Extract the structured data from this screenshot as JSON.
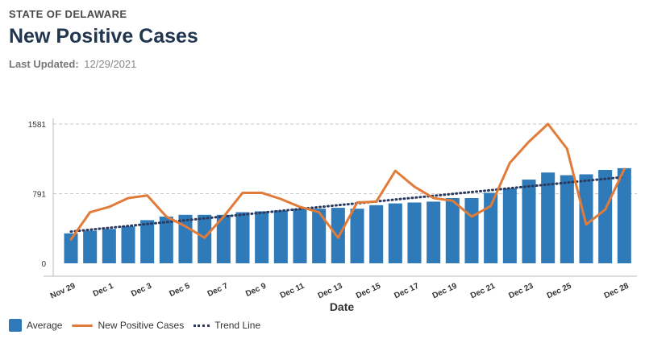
{
  "header": {
    "state": "STATE OF DELAWARE",
    "title": "New Positive Cases",
    "updated_label": "Last Updated:",
    "updated_value": "12/29/2021"
  },
  "legend": {
    "average": "Average",
    "new_cases": "New Positive Cases",
    "trend": "Trend Line"
  },
  "colors": {
    "bar": "#2f7ab9",
    "line": "#e07b39",
    "trend": "#2b3a5f",
    "grid": "#c8c8c8"
  },
  "chart_data": {
    "type": "bar",
    "xlabel": "Date",
    "ylabel": "",
    "ylim": [
      0,
      1581
    ],
    "yticks": [
      0,
      791,
      1581
    ],
    "grid": true,
    "legend_position": "bottom-left",
    "categories": [
      "Nov 29",
      "Nov 30",
      "Dec 1",
      "Dec 2",
      "Dec 3",
      "Dec 4",
      "Dec 5",
      "Dec 6",
      "Dec 7",
      "Dec 8",
      "Dec 9",
      "Dec 10",
      "Dec 11",
      "Dec 12",
      "Dec 13",
      "Dec 14",
      "Dec 15",
      "Dec 16",
      "Dec 17",
      "Dec 18",
      "Dec 19",
      "Dec 20",
      "Dec 21",
      "Dec 22",
      "Dec 23",
      "Dec 24",
      "Dec 25",
      "Dec 26",
      "Dec 27",
      "Dec 28"
    ],
    "tick_labels": [
      "Nov 29",
      "Dec 1",
      "Dec 3",
      "Dec 5",
      "Dec 7",
      "Dec 9",
      "Dec 11",
      "Dec 13",
      "Dec 15",
      "Dec 17",
      "Dec 19",
      "Dec 21",
      "Dec 23",
      "Dec 25",
      "Dec 28"
    ],
    "tick_indices": [
      0,
      2,
      4,
      6,
      8,
      10,
      12,
      14,
      16,
      18,
      20,
      22,
      24,
      26,
      29
    ],
    "series": [
      {
        "name": "Average",
        "type": "bar",
        "values": [
          340,
          370,
          390,
          420,
          490,
          530,
          550,
          550,
          550,
          580,
          590,
          600,
          620,
          620,
          630,
          620,
          660,
          680,
          690,
          700,
          740,
          740,
          800,
          850,
          950,
          1030,
          1000,
          1010,
          1060,
          1080
        ]
      },
      {
        "name": "New Positive Cases",
        "type": "line",
        "values": [
          270,
          580,
          640,
          740,
          770,
          530,
          420,
          290,
          530,
          800,
          800,
          730,
          640,
          580,
          290,
          690,
          700,
          1050,
          870,
          740,
          710,
          530,
          650,
          1140,
          1380,
          1581,
          1300,
          440,
          610,
          1070
        ]
      },
      {
        "name": "Trend Line",
        "type": "trend",
        "start": 360,
        "end": 980
      }
    ]
  }
}
